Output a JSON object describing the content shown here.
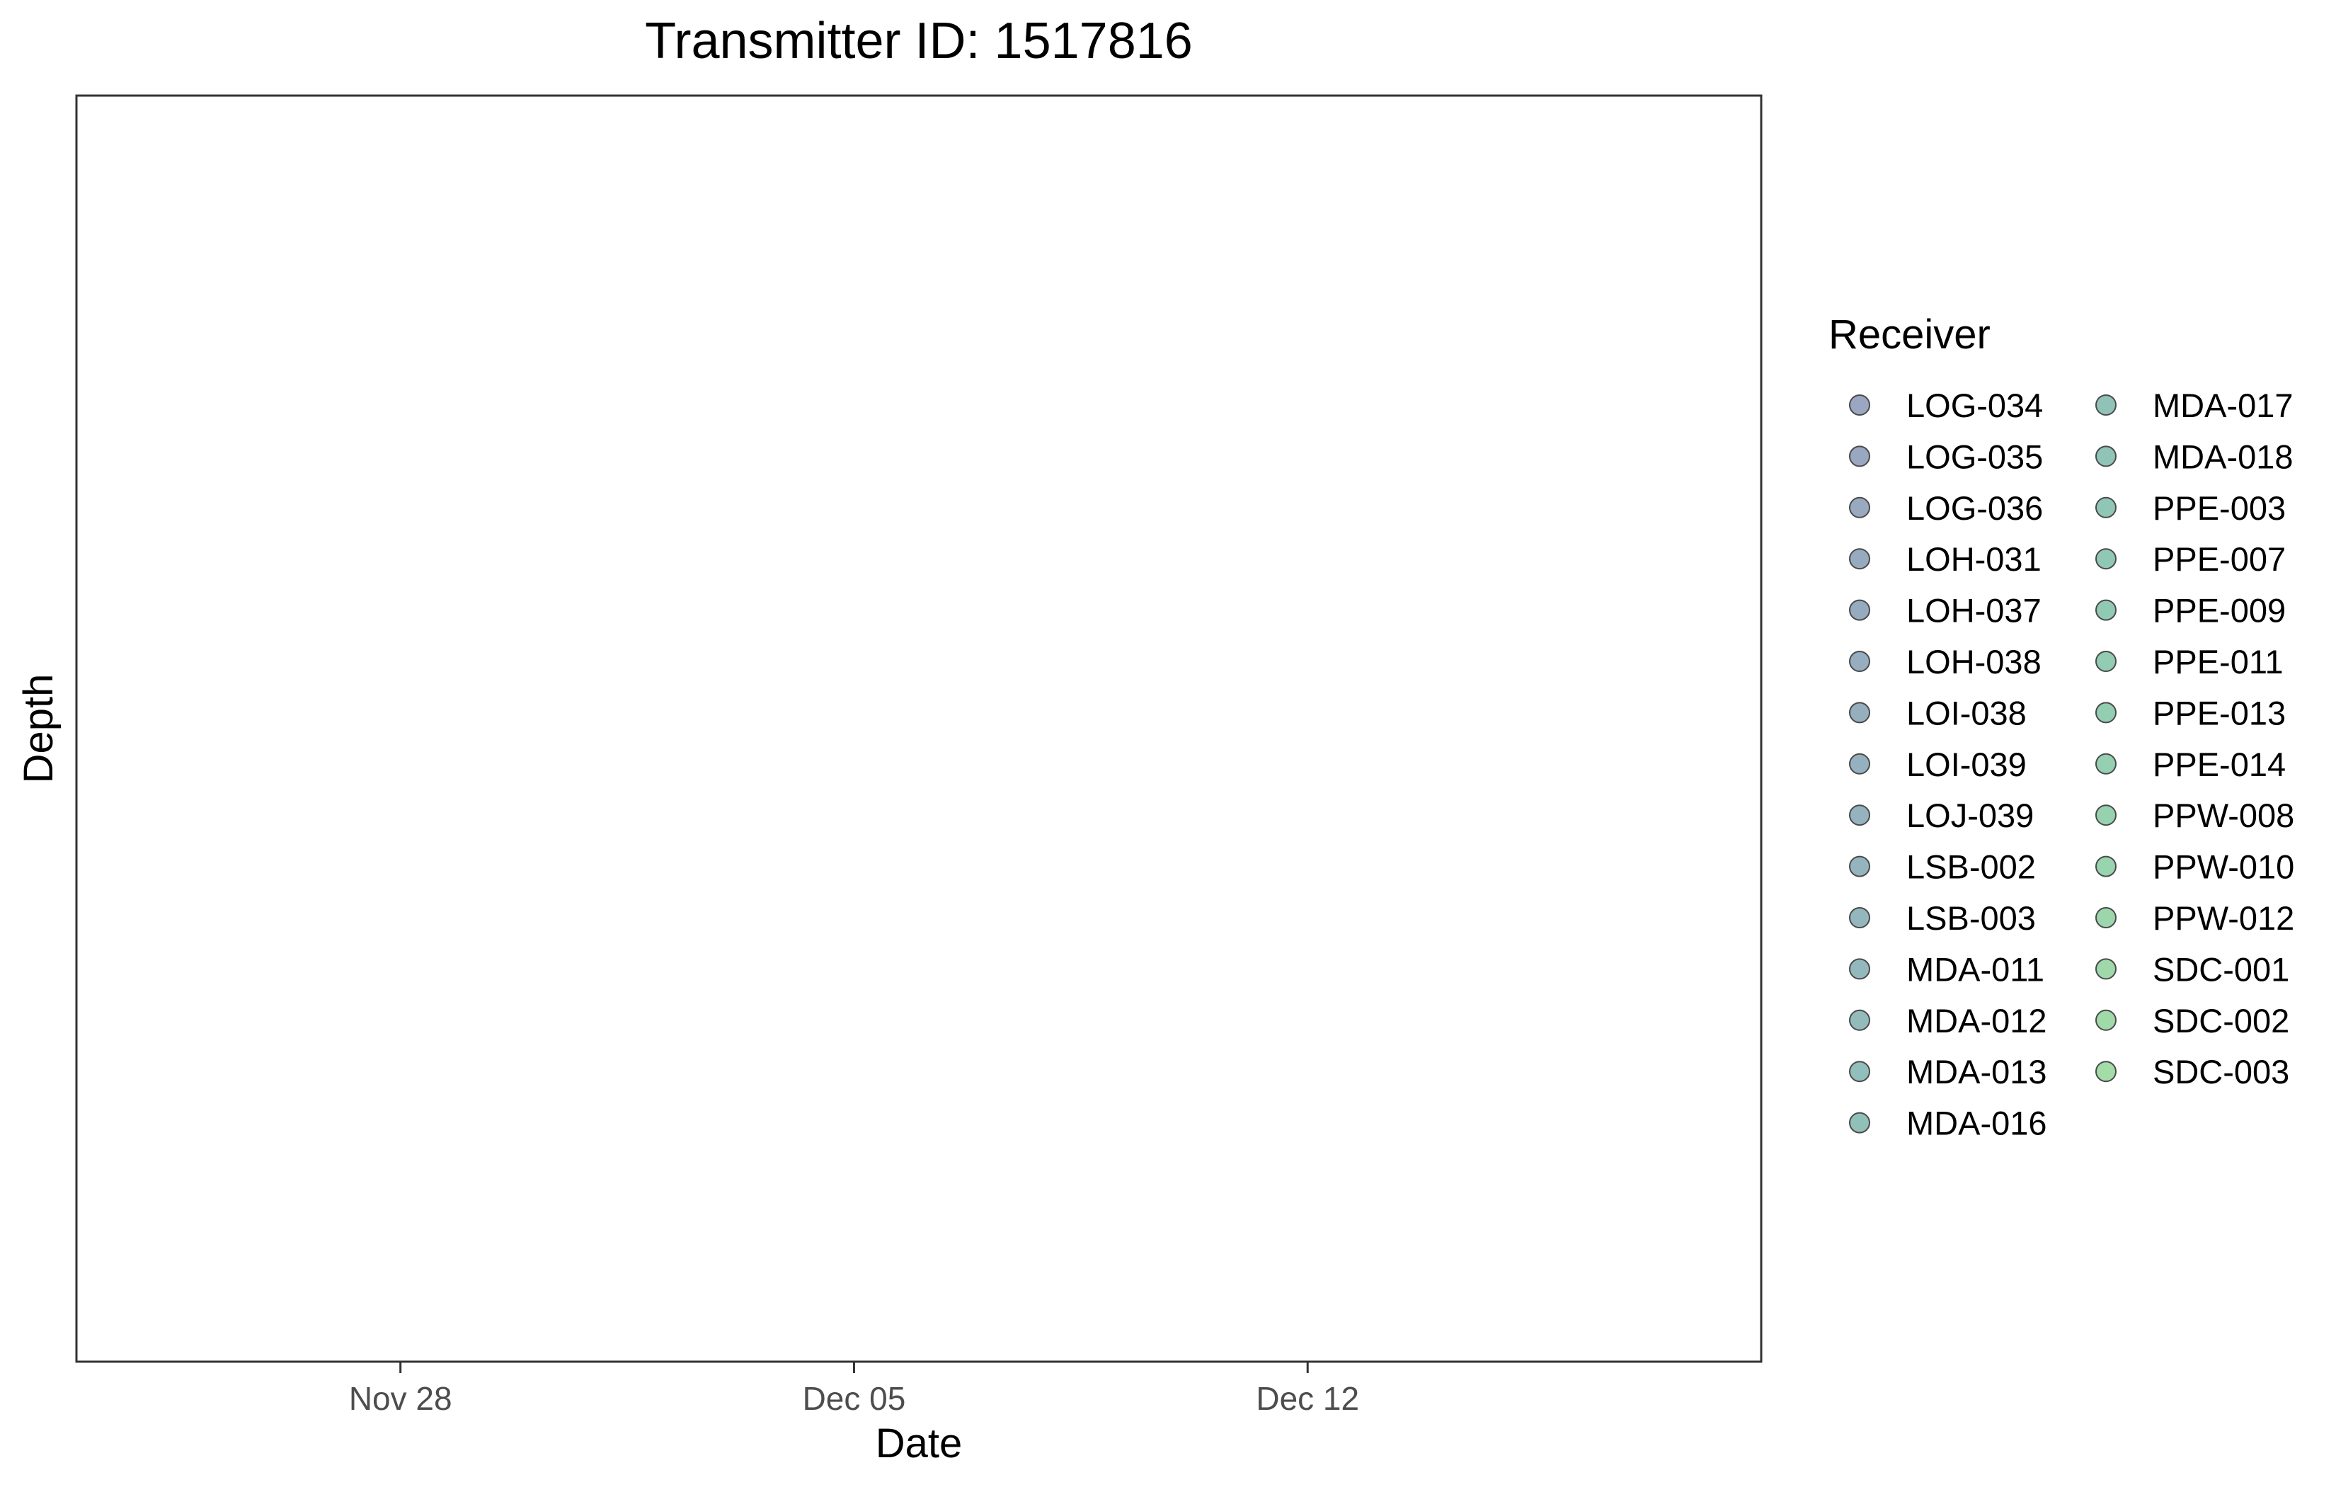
{
  "chart_data": {
    "type": "scatter",
    "title": "Transmitter ID: 1517816",
    "xlabel": "Date",
    "ylabel": "Depth",
    "x_ticks": [
      "Nov 28",
      "Dec 05",
      "Dec 12"
    ],
    "x_tick_dates": [
      "2023-11-28",
      "2023-12-05",
      "2023-12-12"
    ],
    "xlim": [
      "2023-11-23",
      "2023-12-19"
    ],
    "grid": false,
    "points": [],
    "legend": {
      "title": "Receiver",
      "placement": "right",
      "columns": 2,
      "entries": [
        {
          "label": "LOG-034",
          "color": "#9ba6c0"
        },
        {
          "label": "LOG-035",
          "color": "#99a7c0"
        },
        {
          "label": "LOG-036",
          "color": "#98a9c0"
        },
        {
          "label": "LOH-031",
          "color": "#97aac0"
        },
        {
          "label": "LOH-037",
          "color": "#96abbf"
        },
        {
          "label": "LOH-038",
          "color": "#96aebf"
        },
        {
          "label": "LOI-038",
          "color": "#95afbf"
        },
        {
          "label": "LOI-039",
          "color": "#95b1bf"
        },
        {
          "label": "LOJ-039",
          "color": "#95b3be"
        },
        {
          "label": "LSB-002",
          "color": "#95b5be"
        },
        {
          "label": "LSB-003",
          "color": "#94b7bd"
        },
        {
          "label": "MDA-011",
          "color": "#94b9bd"
        },
        {
          "label": "MDA-012",
          "color": "#93bbbc"
        },
        {
          "label": "MDA-013",
          "color": "#92bebb"
        },
        {
          "label": "MDA-016",
          "color": "#91c0b9"
        },
        {
          "label": "MDA-017",
          "color": "#91c2b8"
        },
        {
          "label": "MDA-018",
          "color": "#90c4b7"
        },
        {
          "label": "PPE-003",
          "color": "#90c6b6"
        },
        {
          "label": "PPE-007",
          "color": "#90c8b5"
        },
        {
          "label": "PPE-009",
          "color": "#91cab4"
        },
        {
          "label": "PPE-011",
          "color": "#92ccb3"
        },
        {
          "label": "PPE-013",
          "color": "#93ceb2"
        },
        {
          "label": "PPE-014",
          "color": "#94d0b1"
        },
        {
          "label": "PPW-008",
          "color": "#96d2b0"
        },
        {
          "label": "PPW-010",
          "color": "#98d4ae"
        },
        {
          "label": "PPW-012",
          "color": "#9bd6ad"
        },
        {
          "label": "SDC-001",
          "color": "#9ed8ab"
        },
        {
          "label": "SDC-002",
          "color": "#a1daa9"
        },
        {
          "label": "SDC-003",
          "color": "#a4dca7"
        }
      ]
    }
  }
}
